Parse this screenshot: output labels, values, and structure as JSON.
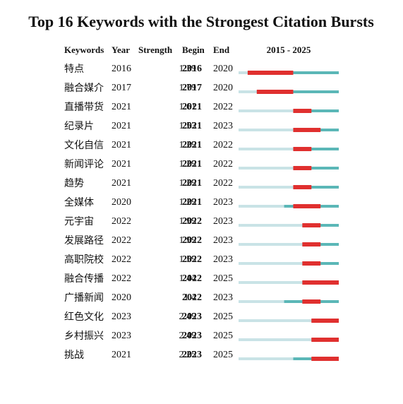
{
  "title": "Top 16 Keywords with the Strongest Citation Bursts",
  "columns": [
    "Keywords",
    "Year",
    "Strength",
    "Begin",
    "End"
  ],
  "timeline": {
    "label": "2015 - 2025",
    "xlim": [
      2015,
      2025
    ]
  },
  "rows": [
    {
      "keyword": "特点",
      "year": 2016,
      "strength": 1.39,
      "begin": 2016,
      "end": 2020
    },
    {
      "keyword": "融合媒介",
      "year": 2017,
      "strength": 1.79,
      "begin": 2017,
      "end": 2020
    },
    {
      "keyword": "直播带货",
      "year": 2021,
      "strength": 1.61,
      "begin": 2021,
      "end": 2022
    },
    {
      "keyword": "纪录片",
      "year": 2021,
      "strength": 1.53,
      "begin": 2021,
      "end": 2023
    },
    {
      "keyword": "文化自信",
      "year": 2021,
      "strength": 1.29,
      "begin": 2021,
      "end": 2022
    },
    {
      "keyword": "新闻评论",
      "year": 2021,
      "strength": 1.29,
      "begin": 2021,
      "end": 2022
    },
    {
      "keyword": "趋势",
      "year": 2021,
      "strength": 1.29,
      "begin": 2021,
      "end": 2022
    },
    {
      "keyword": "全媒体",
      "year": 2020,
      "strength": 1.29,
      "begin": 2021,
      "end": 2023
    },
    {
      "keyword": "元宇宙",
      "year": 2022,
      "strength": 1.99,
      "begin": 2022,
      "end": 2023
    },
    {
      "keyword": "发展路径",
      "year": 2022,
      "strength": 1.99,
      "begin": 2022,
      "end": 2023
    },
    {
      "keyword": "高职院校",
      "year": 2022,
      "strength": 1.59,
      "begin": 2022,
      "end": 2023
    },
    {
      "keyword": "融合传播",
      "year": 2022,
      "strength": 1.44,
      "begin": 2022,
      "end": 2025
    },
    {
      "keyword": "广播新闻",
      "year": 2020,
      "strength": 1.4,
      "begin": 2022,
      "end": 2023
    },
    {
      "keyword": "红色文化",
      "year": 2023,
      "strength": 2.49,
      "begin": 2023,
      "end": 2025
    },
    {
      "keyword": "乡村振兴",
      "year": 2023,
      "strength": 2.49,
      "begin": 2023,
      "end": 2025
    },
    {
      "keyword": "挑战",
      "year": 2021,
      "strength": 2.25,
      "begin": 2023,
      "end": 2025
    }
  ]
}
